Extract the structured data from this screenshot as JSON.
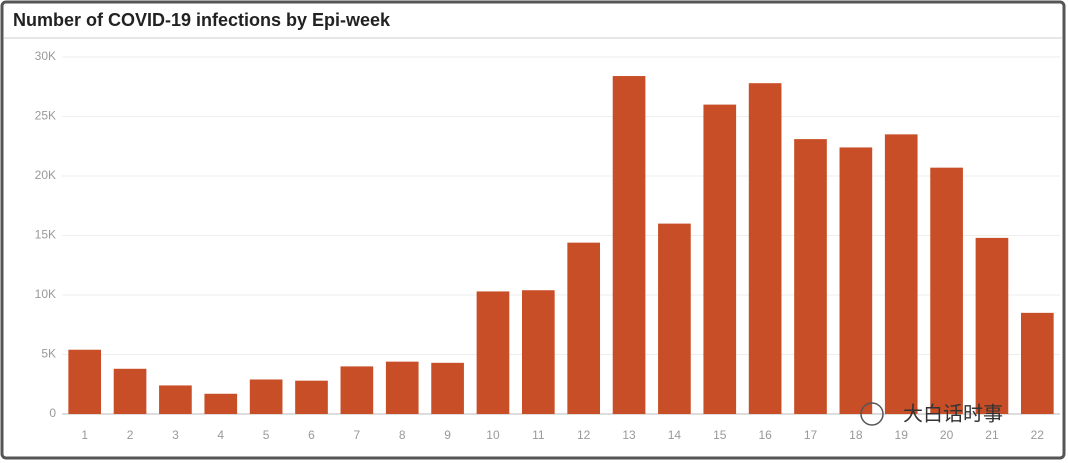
{
  "chart_data": {
    "type": "bar",
    "title": "Number of COVID-19 infections by Epi-week",
    "categories": [
      "1",
      "2",
      "3",
      "4",
      "5",
      "6",
      "7",
      "8",
      "9",
      "10",
      "11",
      "12",
      "13",
      "14",
      "15",
      "16",
      "17",
      "18",
      "19",
      "20",
      "21",
      "22"
    ],
    "values": [
      5400,
      3800,
      2400,
      1700,
      2900,
      2800,
      4000,
      4400,
      4300,
      10300,
      10400,
      14400,
      28400,
      16000,
      26000,
      27800,
      23100,
      22400,
      23500,
      20700,
      14800,
      8500
    ],
    "color": "#c84e27",
    "ylim": [
      0,
      30000
    ],
    "yticks": [
      0,
      {
        "value": 5000,
        "label": "5K"
      },
      {
        "value": 10000,
        "label": "10K"
      },
      {
        "value": 15000,
        "label": "15K"
      },
      {
        "value": 20000,
        "label": "20K"
      },
      {
        "value": 25000,
        "label": "25K"
      },
      {
        "value": 30000,
        "label": "30K"
      }
    ],
    "grid": true,
    "watermark": "大白话时事"
  }
}
